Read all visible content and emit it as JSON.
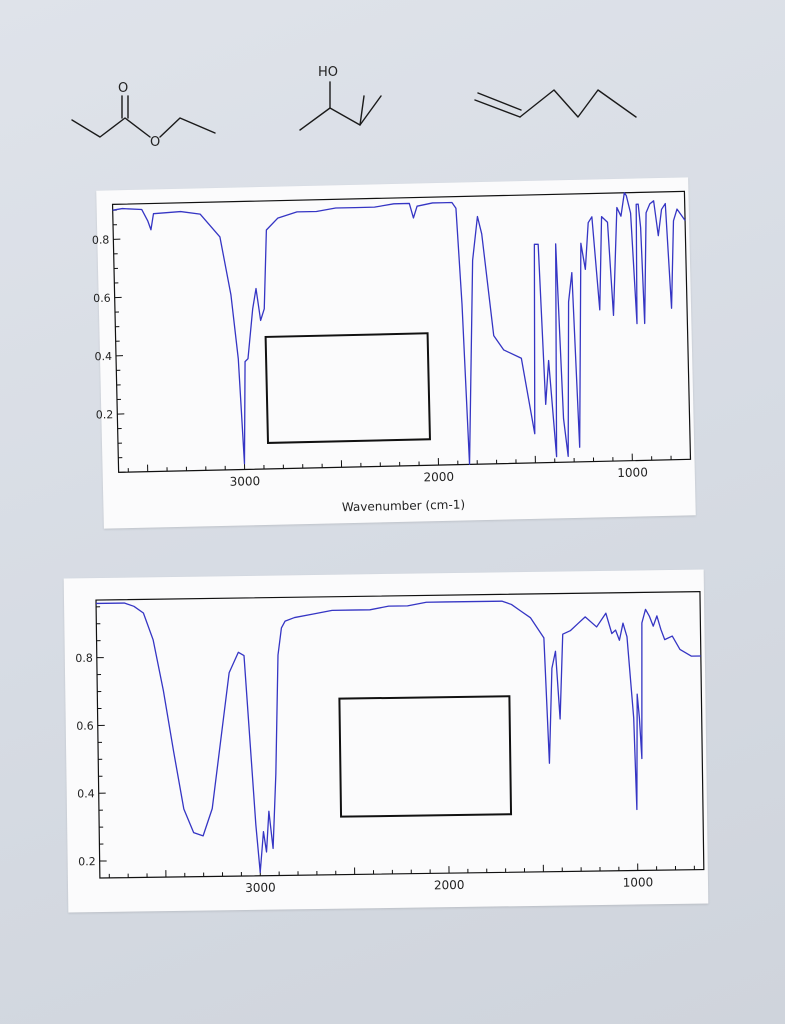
{
  "molecules": [
    {
      "carbonyl_o": "O",
      "ester_o": "O"
    },
    {
      "hydroxyl": "HO"
    },
    {}
  ],
  "chart_data": [
    {
      "type": "line",
      "xlabel": "Wavenumber (cm-1)",
      "ylabel": "",
      "xlim": [
        3650,
        700
      ],
      "ylim": [
        0,
        0.92
      ],
      "xticks": [
        3000,
        2000,
        1000
      ],
      "yticks": [
        0.2,
        0.4,
        0.6,
        0.8
      ],
      "ytick_labels": [
        "0.2",
        "0.4",
        "0.6",
        "0.8"
      ],
      "xtick_labels": [
        "3000",
        "2000",
        "1000"
      ],
      "series": [
        {
          "color": "#3535c4",
          "x": [
            3650,
            3600,
            3500,
            3470,
            3455,
            3440,
            3300,
            3200,
            3100,
            3050,
            3020,
            3000,
            2985,
            2970,
            2940,
            2920,
            2900,
            2880,
            2860,
            2800,
            2700,
            2600,
            2500,
            2400,
            2300,
            2200,
            2120,
            2100,
            2080,
            2000,
            1950,
            1900,
            1880,
            1860,
            1840,
            1800,
            1770,
            1750,
            1700,
            1650,
            1560,
            1500,
            1480,
            1460,
            1440,
            1420,
            1390,
            1370,
            1350,
            1330,
            1310,
            1290,
            1270,
            1240,
            1220,
            1200,
            1180,
            1150,
            1130,
            1100,
            1080,
            1050,
            1030,
            1010,
            1000,
            980,
            960,
            950,
            940,
            930,
            920,
            900,
            880,
            860,
            840,
            820,
            800,
            780,
            760,
            740,
            720,
            700
          ],
          "y": [
            0.9,
            0.905,
            0.9,
            0.86,
            0.83,
            0.885,
            0.89,
            0.88,
            0.8,
            0.6,
            0.38,
            0.02,
            0.37,
            0.38,
            0.55,
            0.62,
            0.51,
            0.55,
            0.82,
            0.86,
            0.88,
            0.88,
            0.89,
            0.89,
            0.89,
            0.9,
            0.9,
            0.85,
            0.89,
            0.9,
            0.9,
            0.9,
            0.88,
            0.55,
            0.0,
            0.7,
            0.85,
            0.79,
            0.44,
            0.39,
            0.36,
            0.1,
            0.75,
            0.75,
            0.2,
            0.35,
            0.02,
            0.75,
            0.15,
            0.02,
            0.55,
            0.65,
            0.05,
            0.75,
            0.66,
            0.82,
            0.84,
            0.52,
            0.84,
            0.82,
            0.5,
            0.87,
            0.84,
            0.93,
            0.91,
            0.85,
            0.47,
            0.88,
            0.88,
            0.8,
            0.47,
            0.85,
            0.88,
            0.89,
            0.77,
            0.86,
            0.88,
            0.52,
            0.82,
            0.86,
            0.84,
            0.82
          ]
        }
      ],
      "legend": "none",
      "grid": false
    },
    {
      "type": "line",
      "xlabel": "",
      "ylabel": "",
      "xlim": [
        3850,
        650
      ],
      "ylim": [
        0.15,
        0.97
      ],
      "xticks": [
        3000,
        2000,
        1000
      ],
      "yticks": [
        0.2,
        0.4,
        0.6,
        0.8
      ],
      "ytick_labels": [
        "0.2",
        "0.4",
        "0.6",
        "0.8"
      ],
      "xtick_labels": [
        "3000",
        "2000",
        "1000"
      ],
      "series": [
        {
          "color": "#3535c4",
          "x": [
            3850,
            3800,
            3700,
            3650,
            3600,
            3550,
            3500,
            3450,
            3400,
            3350,
            3300,
            3250,
            3200,
            3150,
            3100,
            3070,
            3050,
            3020,
            3000,
            2980,
            2965,
            2950,
            2930,
            2910,
            2890,
            2870,
            2850,
            2800,
            2700,
            2600,
            2500,
            2400,
            2300,
            2200,
            2100,
            2000,
            1900,
            1800,
            1700,
            1650,
            1600,
            1550,
            1480,
            1460,
            1440,
            1420,
            1400,
            1380,
            1340,
            1300,
            1260,
            1200,
            1150,
            1120,
            1100,
            1080,
            1060,
            1040,
            1010,
            1000,
            990,
            980,
            970,
            960,
            940,
            920,
            900,
            880,
            860,
            840,
            800,
            760,
            700,
            650
          ],
          "y": [
            0.96,
            0.96,
            0.96,
            0.95,
            0.93,
            0.85,
            0.7,
            0.52,
            0.35,
            0.28,
            0.27,
            0.35,
            0.55,
            0.75,
            0.81,
            0.8,
            0.6,
            0.3,
            0.16,
            0.28,
            0.22,
            0.34,
            0.23,
            0.45,
            0.8,
            0.88,
            0.9,
            0.91,
            0.92,
            0.93,
            0.93,
            0.93,
            0.94,
            0.94,
            0.95,
            0.95,
            0.95,
            0.95,
            0.95,
            0.94,
            0.92,
            0.9,
            0.84,
            0.47,
            0.75,
            0.8,
            0.6,
            0.85,
            0.86,
            0.88,
            0.9,
            0.87,
            0.91,
            0.85,
            0.86,
            0.83,
            0.88,
            0.84,
            0.6,
            0.33,
            0.67,
            0.6,
            0.48,
            0.88,
            0.92,
            0.9,
            0.87,
            0.9,
            0.86,
            0.83,
            0.84,
            0.8,
            0.78,
            0.78
          ]
        }
      ],
      "legend": "none",
      "grid": false
    }
  ]
}
